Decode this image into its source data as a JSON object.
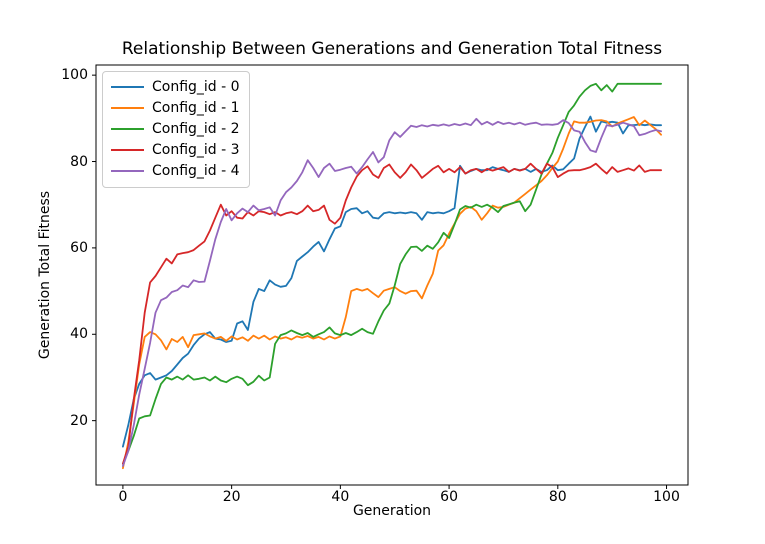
{
  "figure": {
    "background": "#ffffff",
    "spine_color": "#000000",
    "text_color": "#000000",
    "legend_border_color": "#cccccc"
  },
  "chart_data": {
    "type": "line",
    "title": "Relationship Between Generations and Generation Total Fitness",
    "xlabel": "Generation",
    "ylabel": "Generation Total Fitness",
    "x_ticks": [
      0,
      20,
      40,
      60,
      80,
      100
    ],
    "y_ticks": [
      20,
      40,
      60,
      80,
      100
    ],
    "xlim": [
      -4.95,
      103.95
    ],
    "ylim": [
      5.1,
      102.35
    ],
    "grid": false,
    "legend_position": "upper left",
    "x_start": 0,
    "x_step": 1,
    "points_per_series": 100,
    "series": [
      {
        "name": "Config_id - 0",
        "color": "#1f77b4",
        "values": [
          14,
          19,
          25,
          28.5,
          30.5,
          31,
          29.5,
          30,
          30.5,
          31.5,
          33,
          34.5,
          35.5,
          37.5,
          39,
          40,
          40.5,
          39,
          38.8,
          38.2,
          38.5,
          42.5,
          43,
          41,
          47.5,
          50.5,
          50,
          52.5,
          51.5,
          51,
          51.2,
          53,
          57,
          58,
          59,
          60.3,
          61.4,
          59.2,
          62,
          64.5,
          65,
          68.3,
          69,
          69.2,
          68,
          68.5,
          67,
          66.8,
          68,
          68.3,
          68,
          68.2,
          68,
          68.3,
          68,
          66.5,
          68.3,
          68,
          68.2,
          68,
          68.5,
          69.2,
          79,
          77.2,
          77.8,
          78.3,
          78,
          78,
          78.7,
          78.3,
          78,
          77.6,
          78.3,
          78,
          78.3,
          77.6,
          78.3,
          77.6,
          78,
          79.1,
          78,
          78.2,
          79.5,
          80.7,
          85.3,
          88,
          90.4,
          86.9,
          89.3,
          89,
          89.2,
          89,
          86.5,
          88.4,
          88.4,
          88.6,
          88.4,
          88.6,
          88.4,
          88.4
        ]
      },
      {
        "name": "Config_id - 1",
        "color": "#ff7f0e",
        "values": [
          9,
          15,
          24,
          33,
          39.4,
          40.5,
          40,
          38.6,
          36.5,
          38.9,
          38.2,
          39.4,
          37,
          39.8,
          40,
          40.2,
          39.5,
          39,
          39.4,
          38.5,
          39.5,
          38.8,
          39.3,
          38.5,
          39.7,
          39,
          39.7,
          38.8,
          39.5,
          39,
          39.3,
          38.8,
          39.5,
          39.2,
          39.6,
          39,
          39.4,
          38.8,
          39.5,
          39,
          39.5,
          44,
          50,
          50.5,
          50.1,
          50.5,
          49.5,
          48.6,
          50.1,
          50.5,
          50.9,
          50,
          49.4,
          50,
          50.1,
          48.3,
          51.3,
          54,
          59.4,
          60.6,
          63.3,
          65.6,
          67.9,
          69.1,
          69.5,
          68.5,
          66.5,
          68,
          69.8,
          69.3,
          69.5,
          70,
          70.5,
          71.5,
          72.5,
          73.5,
          74.5,
          75.5,
          76.8,
          78.5,
          80,
          83,
          86.5,
          89.3,
          89,
          89,
          89.2,
          89.5,
          89.6,
          89.3,
          88.1,
          88.8,
          89.3,
          89.8,
          90.3,
          88.4,
          89.5,
          88.5,
          87.5,
          86.2
        ]
      },
      {
        "name": "Config_id - 2",
        "color": "#2ca02c",
        "values": [
          10,
          13,
          16.5,
          20.5,
          21,
          21.2,
          25,
          28.5,
          30,
          29.5,
          30.2,
          29.5,
          30.5,
          29.5,
          29.7,
          30,
          29.3,
          30.2,
          29.3,
          28.9,
          29.7,
          30.2,
          29.7,
          28.2,
          29,
          30.4,
          29.3,
          30,
          37.8,
          39.8,
          40.2,
          40.9,
          40.3,
          39.8,
          40.3,
          39.4,
          40,
          40.5,
          41.6,
          40.2,
          39.8,
          40.3,
          39.8,
          40.5,
          41.3,
          40.5,
          40.1,
          43,
          45.5,
          47.1,
          51.3,
          56.3,
          58.5,
          60.2,
          60.3,
          59.3,
          60.5,
          59.8,
          61.3,
          63.5,
          62.3,
          65.4,
          68.9,
          69.7,
          69.3,
          70,
          69.5,
          70,
          69.3,
          68.3,
          69.7,
          70.1,
          70.5,
          70.8,
          68.5,
          70,
          73.5,
          77,
          79.5,
          82,
          85.5,
          88.4,
          91.5,
          93,
          95,
          96.5,
          97.5,
          98,
          96.5,
          97.7,
          96.2,
          98,
          98,
          98,
          98,
          98,
          98,
          98,
          98,
          98
        ]
      },
      {
        "name": "Config_id - 3",
        "color": "#d62728",
        "values": [
          10,
          14,
          25,
          34,
          45,
          52,
          53.5,
          55.5,
          57.5,
          56.4,
          58.5,
          58.8,
          59,
          59.5,
          60.5,
          61.5,
          64,
          67,
          70,
          67.5,
          68.5,
          67,
          66.8,
          68.3,
          67.5,
          68.5,
          68.3,
          67.8,
          68.3,
          67.5,
          68,
          68.3,
          67.8,
          68.5,
          69.8,
          68.5,
          68.8,
          69.8,
          66.5,
          65.6,
          67,
          71,
          74,
          76.5,
          78,
          78.9,
          77,
          76.2,
          78.5,
          79.3,
          77.5,
          76.2,
          77.5,
          79.3,
          78,
          76.2,
          77.2,
          78.3,
          79,
          77.5,
          78.3,
          77.5,
          78.7,
          77.2,
          78,
          78.3,
          77.5,
          78.3,
          77.9,
          78.3,
          78.7,
          77.6,
          78.3,
          77.9,
          78.3,
          79.5,
          78.3,
          77.2,
          79.5,
          78.7,
          76.4,
          77.2,
          77.9,
          78,
          78,
          78.3,
          78.7,
          79.5,
          78.3,
          77.2,
          78.7,
          77.6,
          78,
          78.4,
          77.9,
          79.1,
          77.6,
          78,
          78,
          78
        ]
      },
      {
        "name": "Config_id - 4",
        "color": "#9467bd",
        "values": [
          9.5,
          13,
          19,
          26,
          32,
          38,
          45,
          47.9,
          48.5,
          49.8,
          50.2,
          51.3,
          50.9,
          52.5,
          52.1,
          52.2,
          57,
          62,
          66,
          69,
          66.4,
          68,
          69.1,
          68.3,
          69.8,
          68.7,
          69,
          69.4,
          67.5,
          71,
          72.9,
          74,
          75.5,
          77.5,
          80.3,
          78.5,
          76.4,
          78.5,
          79.5,
          77.8,
          78.1,
          78.5,
          78.8,
          77.2,
          78.7,
          80.5,
          82.2,
          79.8,
          81,
          84.9,
          86.8,
          85.7,
          87,
          88.3,
          88,
          88.4,
          88.1,
          88.5,
          88.3,
          88.6,
          88.3,
          88.7,
          88.4,
          88.8,
          88.4,
          89.9,
          88.6,
          89.2,
          88.5,
          89.2,
          88.7,
          89,
          88.6,
          89,
          88.5,
          88.8,
          89,
          88.5,
          88.6,
          88.5,
          88.7,
          89.6,
          88.9,
          87.2,
          86.9,
          84.5,
          82.6,
          82.2,
          85.5,
          88.4,
          88.2,
          88.5,
          89,
          88.6,
          88.2,
          86.1,
          86.4,
          86.9,
          87.3,
          87
        ]
      }
    ]
  }
}
